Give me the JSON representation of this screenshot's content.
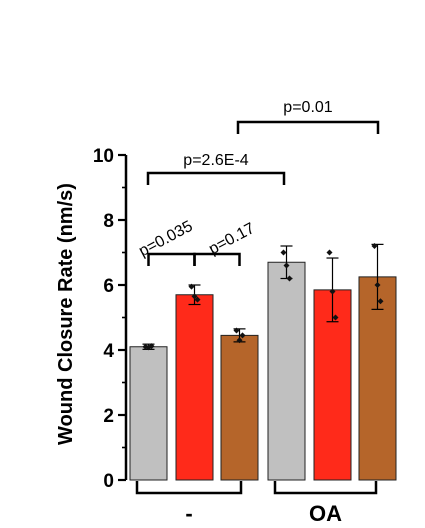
{
  "chart_data": {
    "type": "bar",
    "ylabel": "Wound Closure Rate (nm/s)",
    "ylim": [
      0,
      10
    ],
    "yticks": [
      0,
      2,
      4,
      6,
      8,
      10
    ],
    "grid": false,
    "legend": "none",
    "colors": {
      "gray": "#c0c0c0",
      "red": "#ff2a1a",
      "brown": "#b5652a"
    },
    "groups": [
      {
        "label": "-",
        "bars": [
          {
            "color": "gray",
            "value": 4.1,
            "err": 0.08,
            "points": [
              4.1,
              4.08,
              4.12
            ]
          },
          {
            "color": "red",
            "value": 5.7,
            "err": 0.3,
            "points": [
              5.95,
              5.65,
              5.55
            ]
          },
          {
            "color": "brown",
            "value": 4.45,
            "err": 0.2,
            "points": [
              4.6,
              4.3,
              4.45
            ]
          }
        ]
      },
      {
        "label": "OA",
        "bars": [
          {
            "color": "gray",
            "value": 6.7,
            "err": 0.5,
            "points": [
              7.0,
              6.6,
              6.2
            ]
          },
          {
            "color": "red",
            "value": 5.85,
            "err": 0.98,
            "points": [
              7.0,
              5.8,
              5.0
            ]
          },
          {
            "color": "brown",
            "value": 6.25,
            "err": 1.0,
            "points": [
              7.2,
              6.0,
              5.5
            ]
          }
        ]
      }
    ],
    "comparisons": [
      {
        "label": "p=0.035"
      },
      {
        "label": "p=0.17"
      },
      {
        "label": "p=2.6E-4"
      },
      {
        "label": "p=0.01"
      }
    ]
  }
}
